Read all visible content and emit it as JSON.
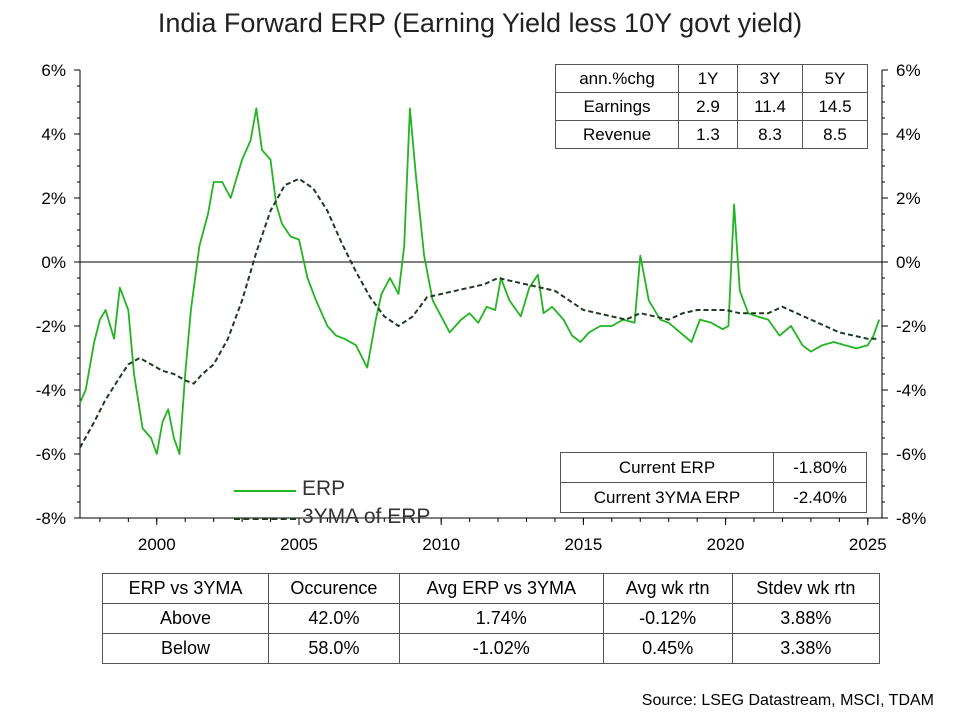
{
  "title": "India Forward ERP (Earning Yield less 10Y govt yield)",
  "source": "Source: LSEG Datastream, MSCI, TDAM",
  "colors": {
    "erp": "#22b422",
    "ma": "#1f3b25",
    "axis": "#000000"
  },
  "legend": {
    "erp": "ERP",
    "ma": "3YMA of ERP"
  },
  "stats_table": {
    "header": [
      "ann.%chg",
      "1Y",
      "3Y",
      "5Y"
    ],
    "rows": [
      [
        "Earnings",
        "2.9",
        "11.4",
        "14.5"
      ],
      [
        "Revenue",
        "1.3",
        "8.3",
        "8.5"
      ]
    ]
  },
  "current_table": {
    "rows": [
      [
        "Current ERP",
        "-1.80%"
      ],
      [
        "Current 3YMA ERP",
        "-2.40%"
      ]
    ]
  },
  "summary_table": {
    "header": [
      "ERP vs 3YMA",
      "Occurence",
      "Avg ERP vs 3YMA",
      "Avg wk rtn",
      "Stdev wk rtn"
    ],
    "rows": [
      [
        "Above",
        "42.0%",
        "1.74%",
        "-0.12%",
        "3.88%"
      ],
      [
        "Below",
        "58.0%",
        "-1.02%",
        "0.45%",
        "3.38%"
      ]
    ]
  },
  "chart_data": {
    "type": "line",
    "title": "India Forward ERP (Earning Yield less 10Y govt yield)",
    "xlim": [
      1997.3,
      2025.5
    ],
    "ylim": [
      -8,
      6
    ],
    "x_ticks": [
      2000,
      2005,
      2010,
      2015,
      2020,
      2025
    ],
    "x_tick_labels": [
      "2000",
      "2005",
      "2010",
      "2015",
      "2020",
      "2025"
    ],
    "y_ticks": [
      6,
      4,
      2,
      0,
      -2,
      -4,
      -6,
      -8
    ],
    "y_tick_labels": [
      "6%",
      "4%",
      "2%",
      "0%",
      "-2%",
      "-4%",
      "-6%",
      "-8%"
    ],
    "series": [
      {
        "name": "ERP",
        "style": "solid",
        "x": [
          1997.3,
          1997.5,
          1997.8,
          1998.0,
          1998.2,
          1998.5,
          1998.7,
          1999.0,
          1999.2,
          1999.5,
          1999.8,
          2000.0,
          2000.2,
          2000.4,
          2000.6,
          2000.8,
          2001.0,
          2001.2,
          2001.5,
          2001.8,
          2002.0,
          2002.3,
          2002.6,
          2003.0,
          2003.3,
          2003.5,
          2003.7,
          2004.0,
          2004.2,
          2004.4,
          2004.7,
          2005.0,
          2005.3,
          2005.6,
          2006.0,
          2006.3,
          2006.6,
          2007.0,
          2007.4,
          2007.7,
          2007.9,
          2008.2,
          2008.5,
          2008.7,
          2008.9,
          2009.1,
          2009.4,
          2009.7,
          2010.0,
          2010.3,
          2010.7,
          2011.0,
          2011.3,
          2011.6,
          2011.9,
          2012.1,
          2012.4,
          2012.8,
          2013.1,
          2013.4,
          2013.6,
          2013.9,
          2014.3,
          2014.6,
          2014.9,
          2015.2,
          2015.6,
          2016.0,
          2016.4,
          2016.8,
          2017.0,
          2017.3,
          2017.7,
          2018.0,
          2018.4,
          2018.8,
          2019.1,
          2019.5,
          2019.9,
          2020.1,
          2020.3,
          2020.5,
          2020.8,
          2021.1,
          2021.5,
          2021.9,
          2022.3,
          2022.7,
          2023.0,
          2023.4,
          2023.8,
          2024.2,
          2024.6,
          2025.0,
          2025.2,
          2025.4
        ],
        "y": [
          -4.4,
          -4.0,
          -2.5,
          -1.8,
          -1.5,
          -2.4,
          -0.8,
          -1.5,
          -3.5,
          -5.2,
          -5.5,
          -6.0,
          -5.0,
          -4.6,
          -5.5,
          -6.0,
          -3.5,
          -1.5,
          0.5,
          1.5,
          2.5,
          2.5,
          2.0,
          3.2,
          3.8,
          4.8,
          3.5,
          3.2,
          1.8,
          1.2,
          0.8,
          0.7,
          -0.5,
          -1.2,
          -2.0,
          -2.3,
          -2.4,
          -2.6,
          -3.3,
          -1.8,
          -1.0,
          -0.5,
          -1.0,
          0.5,
          4.8,
          2.8,
          0.2,
          -1.2,
          -1.7,
          -2.2,
          -1.8,
          -1.6,
          -1.9,
          -1.4,
          -1.5,
          -0.5,
          -1.2,
          -1.7,
          -0.8,
          -0.4,
          -1.6,
          -1.4,
          -1.8,
          -2.3,
          -2.5,
          -2.2,
          -2.0,
          -2.0,
          -1.8,
          -1.9,
          0.2,
          -1.2,
          -1.8,
          -1.9,
          -2.2,
          -2.5,
          -1.8,
          -1.9,
          -2.1,
          -2.0,
          1.8,
          -0.9,
          -1.6,
          -1.7,
          -1.8,
          -2.3,
          -2.0,
          -2.6,
          -2.8,
          -2.6,
          -2.5,
          -2.6,
          -2.7,
          -2.6,
          -2.3,
          -1.8
        ]
      },
      {
        "name": "3YMA of ERP",
        "style": "dashed",
        "x": [
          1997.3,
          1997.8,
          1998.2,
          1998.7,
          1999.0,
          1999.4,
          1999.8,
          2000.2,
          2000.6,
          2001.0,
          2001.3,
          2001.6,
          2002.0,
          2002.5,
          2003.0,
          2003.5,
          2004.0,
          2004.5,
          2005.0,
          2005.5,
          2006.0,
          2006.5,
          2007.0,
          2007.5,
          2008.0,
          2008.5,
          2009.0,
          2009.5,
          2010.0,
          2010.5,
          2011.0,
          2011.5,
          2012.0,
          2012.5,
          2013.0,
          2013.5,
          2014.0,
          2014.5,
          2015.0,
          2015.5,
          2016.0,
          2016.5,
          2017.0,
          2017.5,
          2018.0,
          2018.5,
          2019.0,
          2019.5,
          2020.0,
          2020.5,
          2021.0,
          2021.5,
          2022.0,
          2022.5,
          2023.0,
          2023.5,
          2024.0,
          2024.5,
          2025.0,
          2025.3
        ],
        "y": [
          -5.8,
          -5.0,
          -4.3,
          -3.6,
          -3.2,
          -3.0,
          -3.2,
          -3.4,
          -3.5,
          -3.7,
          -3.8,
          -3.5,
          -3.2,
          -2.4,
          -1.2,
          0.3,
          1.6,
          2.4,
          2.6,
          2.3,
          1.6,
          0.6,
          -0.3,
          -1.1,
          -1.7,
          -2.0,
          -1.7,
          -1.1,
          -1.0,
          -0.9,
          -0.8,
          -0.7,
          -0.5,
          -0.6,
          -0.7,
          -0.8,
          -0.9,
          -1.2,
          -1.5,
          -1.6,
          -1.7,
          -1.8,
          -1.6,
          -1.7,
          -1.8,
          -1.6,
          -1.5,
          -1.5,
          -1.5,
          -1.6,
          -1.6,
          -1.6,
          -1.4,
          -1.6,
          -1.8,
          -2.0,
          -2.2,
          -2.3,
          -2.4,
          -2.4
        ]
      }
    ],
    "grid": false,
    "zero_line": true,
    "legend_position": "bottom-left"
  }
}
